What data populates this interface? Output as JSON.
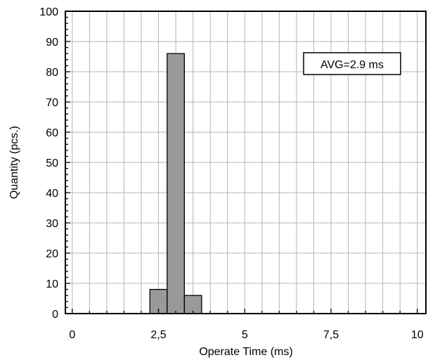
{
  "chart_data": {
    "type": "bar",
    "xlabel": "Operate Time (ms)",
    "ylabel": "Quantity (pcs.)",
    "xlim": [
      -0.2,
      10.25
    ],
    "ylim": [
      0,
      100
    ],
    "x_ticks": [
      0,
      2.5,
      5,
      7.5,
      10
    ],
    "x_tick_labels": [
      "0",
      "2,5",
      "5",
      "7,5",
      "10"
    ],
    "y_ticks": [
      0,
      10,
      20,
      30,
      40,
      50,
      60,
      70,
      80,
      90,
      100
    ],
    "y_tick_labels": [
      "0",
      "10",
      "20",
      "30",
      "40",
      "50",
      "60",
      "70",
      "80",
      "90",
      "100"
    ],
    "bin_width": 0.5,
    "bins": [
      {
        "start": 2.25,
        "end": 2.75,
        "value": 8
      },
      {
        "start": 2.75,
        "end": 3.25,
        "value": 86
      },
      {
        "start": 3.25,
        "end": 3.75,
        "value": 6
      }
    ],
    "grid": true,
    "annotation": "AVG=2.9 ms"
  }
}
